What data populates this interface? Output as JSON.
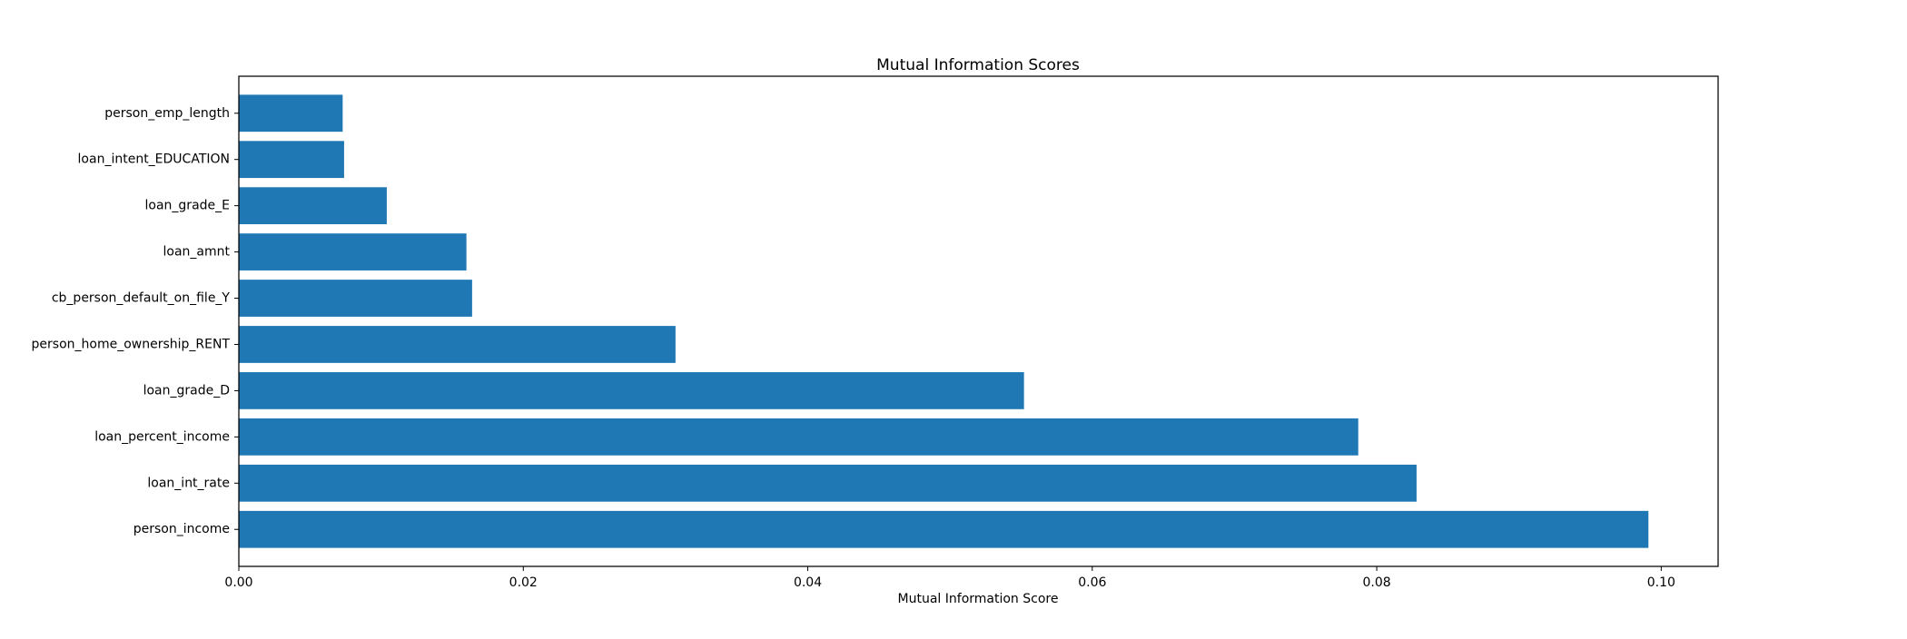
{
  "chart_data": {
    "type": "bar",
    "orientation": "horizontal",
    "title": "Mutual Information Scores",
    "xlabel": "Mutual Information Score",
    "ylabel": "",
    "xlim": [
      0,
      0.104
    ],
    "xticks": [
      0.0,
      0.02,
      0.04,
      0.06,
      0.08,
      0.1
    ],
    "xtick_labels": [
      "0.00",
      "0.02",
      "0.04",
      "0.06",
      "0.08",
      "0.10"
    ],
    "grid": false,
    "bar_color": "#1f77b4",
    "categories": [
      "person_income",
      "loan_int_rate",
      "loan_percent_income",
      "loan_grade_D",
      "person_home_ownership_RENT",
      "cb_person_default_on_file_Y",
      "loan_amnt",
      "loan_grade_E",
      "loan_intent_EDUCATION",
      "person_emp_length"
    ],
    "values": [
      0.0991,
      0.0828,
      0.0787,
      0.0552,
      0.0307,
      0.0164,
      0.016,
      0.0104,
      0.0074,
      0.0073
    ]
  }
}
